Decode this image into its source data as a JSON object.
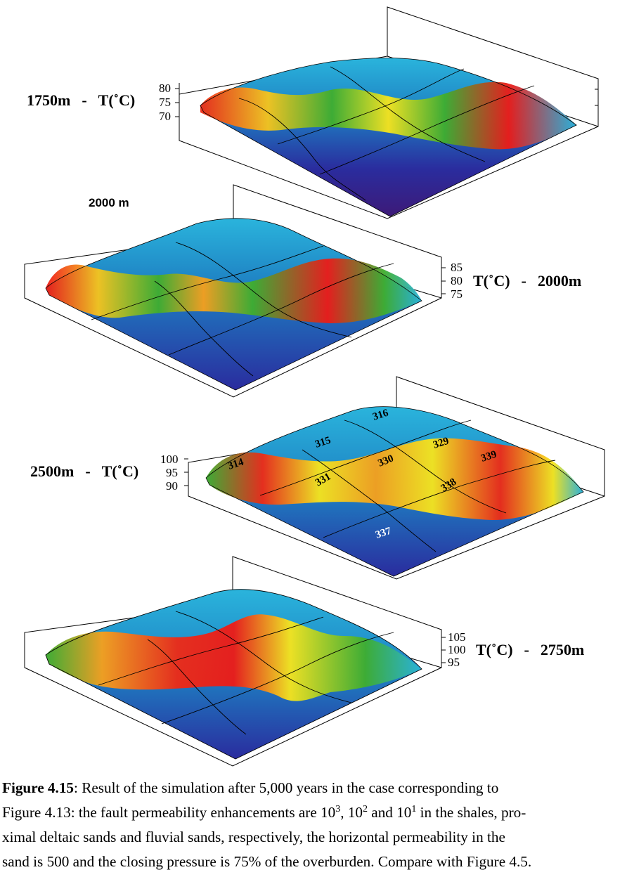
{
  "panels": [
    {
      "label_left": "1750m",
      "dash": "-",
      "label_unit": "T(˚C)",
      "ticks": [
        "80",
        "75",
        "70"
      ]
    },
    {
      "header": "2000 m",
      "label_unit": "T(˚C)",
      "dash": "-",
      "label_right": "2000m",
      "ticks": [
        "85",
        "80",
        "75"
      ]
    },
    {
      "label_left": "2500m",
      "dash": "-",
      "label_unit": "T(˚C)",
      "ticks": [
        "100",
        "95",
        "90"
      ],
      "contour_labels": [
        "316",
        "315",
        "329",
        "330",
        "339",
        "314",
        "331",
        "338",
        "337"
      ]
    },
    {
      "label_unit": "T(˚C)",
      "dash": "-",
      "label_right": "2750m",
      "ticks": [
        "105",
        "100",
        "95"
      ]
    }
  ],
  "caption": {
    "fig_label": "Figure 4.15",
    "line1_rest": ": Result of the simulation after 5,000 years in the case corresponding to",
    "line2_a": "Figure 4.13: the fault permeability enhancements are 10",
    "sup1": "3",
    "line2_b": ", 10",
    "sup2": "2",
    "line2_c": " and 10",
    "sup3": "1",
    "line2_d": " in the shales, pro-",
    "line3": "ximal deltaic sands and fluvial sands, respectively, the horizontal permeability in the",
    "line4": "sand is 500 and the closing pressure is 75% of the overburden. Compare with Figure 4.5."
  },
  "colors": {
    "hot": "#ee1a16",
    "warm": "#f7e51c",
    "mid": "#3fae2e",
    "cool": "#2ab4dc",
    "cold": "#2a2c9e",
    "coldest": "#3d1a78"
  }
}
